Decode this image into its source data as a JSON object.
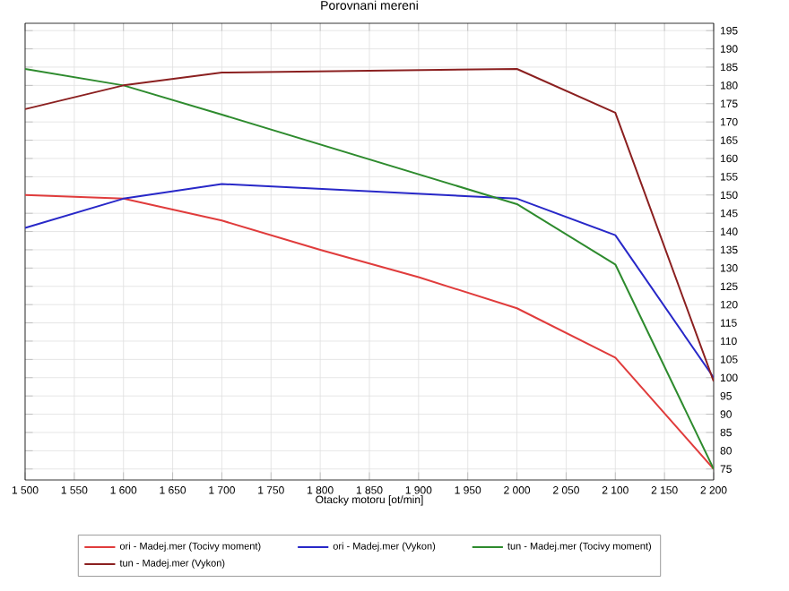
{
  "chart_data": {
    "type": "line",
    "title": "Porovnani mereni",
    "xlabel": "Otacky motoru [ot/min]",
    "x": [
      1500,
      1600,
      1700,
      1800,
      1900,
      2000,
      2100,
      2200
    ],
    "series": [
      {
        "name": "ori - Madej.mer  (Tocivy moment)",
        "color": "#e03c3c",
        "values": [
          150,
          149,
          143,
          135,
          127.5,
          119,
          105.5,
          75
        ]
      },
      {
        "name": "ori - Madej.mer  (Vykon)",
        "color": "#2828c8",
        "values": [
          141,
          149,
          153,
          null,
          null,
          149,
          139,
          100
        ]
      },
      {
        "name": "tun - Madej.mer  (Tocivy moment)",
        "color": "#2e8b2e",
        "values": [
          184.5,
          180,
          172,
          null,
          null,
          147.5,
          131,
          75
        ]
      },
      {
        "name": "tun - Madej.mer  (Vykon)",
        "color": "#8b2020",
        "values": [
          173.5,
          180,
          183.5,
          null,
          null,
          184.5,
          172.5,
          99
        ]
      }
    ],
    "xlim": [
      1500,
      2200
    ],
    "xticks": [
      {
        "value": 1500,
        "label": "1 500"
      },
      {
        "value": 1550,
        "label": "1 550"
      },
      {
        "value": 1600,
        "label": "1 600"
      },
      {
        "value": 1650,
        "label": "1 650"
      },
      {
        "value": 1700,
        "label": "1 700"
      },
      {
        "value": 1750,
        "label": "1 750"
      },
      {
        "value": 1800,
        "label": "1 800"
      },
      {
        "value": 1850,
        "label": "1 850"
      },
      {
        "value": 1900,
        "label": "1 900"
      },
      {
        "value": 1950,
        "label": "1 950"
      },
      {
        "value": 2000,
        "label": "2 000"
      },
      {
        "value": 2050,
        "label": "2 050"
      },
      {
        "value": 2100,
        "label": "2 100"
      },
      {
        "value": 2150,
        "label": "2 150"
      },
      {
        "value": 2200,
        "label": "2 200"
      }
    ],
    "ylim": [
      72,
      197
    ],
    "yticks": [
      75,
      80,
      85,
      90,
      95,
      100,
      105,
      110,
      115,
      120,
      125,
      130,
      135,
      140,
      145,
      150,
      155,
      160,
      165,
      170,
      175,
      180,
      185,
      190,
      195
    ],
    "grid": true,
    "legend": "bottom",
    "marker": "none",
    "line_style": "solid"
  }
}
